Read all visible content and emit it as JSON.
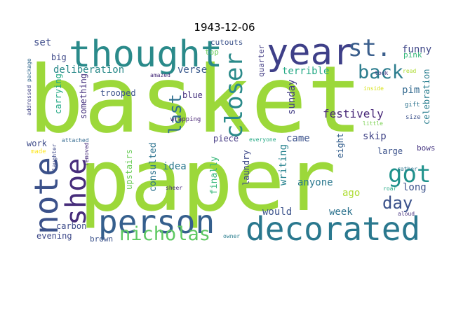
{
  "title": "1943-12-06",
  "words": [
    {
      "text": "basket",
      "color": "#9cd83a"
    },
    {
      "text": "paper",
      "color": "#9cd83a"
    },
    {
      "text": "thought",
      "color": "#2a8a8a"
    },
    {
      "text": "year",
      "color": "#3e3f88"
    },
    {
      "text": "st.",
      "color": "#3a5e8c"
    },
    {
      "text": "note",
      "color": "#3b518a"
    },
    {
      "text": "shoe",
      "color": "#472d7b"
    },
    {
      "text": "person",
      "color": "#355f8d"
    },
    {
      "text": "decorated",
      "color": "#2a788e"
    },
    {
      "text": "nicholas",
      "color": "#5ec962"
    },
    {
      "text": "got",
      "color": "#20928c"
    },
    {
      "text": "day",
      "color": "#3b528b"
    },
    {
      "text": "closer",
      "color": "#2a8a8a"
    },
    {
      "text": "back",
      "color": "#2c7d8e"
    },
    {
      "text": "last",
      "color": "#2e6f8e"
    },
    {
      "text": "festively",
      "color": "#482878"
    },
    {
      "text": "set",
      "color": "#3e4c8a"
    },
    {
      "text": "funny",
      "color": "#3f4788"
    },
    {
      "text": "big",
      "color": "#3e4989"
    },
    {
      "text": "deliberation",
      "color": "#2a8a8a"
    },
    {
      "text": "verse",
      "color": "#38588c"
    },
    {
      "text": "terrible",
      "color": "#22a884"
    },
    {
      "text": "something",
      "color": "#46327e"
    },
    {
      "text": "trooped",
      "color": "#3b528b"
    },
    {
      "text": "blue",
      "color": "#46327e"
    },
    {
      "text": "sunday",
      "color": "#433e85"
    },
    {
      "text": "pim",
      "color": "#31688e"
    },
    {
      "text": "celebration",
      "color": "#287d8e"
    },
    {
      "text": "pink",
      "color": "#35b779"
    },
    {
      "text": "cutouts",
      "color": "#3b528b"
    },
    {
      "text": "top",
      "color": "#6ccd5a"
    },
    {
      "text": "quarter",
      "color": "#433e85"
    },
    {
      "text": "carrying",
      "color": "#22a884"
    },
    {
      "text": "wrapping",
      "color": "#482475"
    },
    {
      "text": "amazed",
      "color": "#472c7a"
    },
    {
      "text": "took",
      "color": "#443983"
    },
    {
      "text": "read",
      "color": "#addc30"
    },
    {
      "text": "inside",
      "color": "#d8e219"
    },
    {
      "text": "gift",
      "color": "#2c738e"
    },
    {
      "text": "size",
      "color": "#3b518b"
    },
    {
      "text": "little",
      "color": "#7ad151"
    },
    {
      "text": "addressed",
      "color": "#414487"
    },
    {
      "text": "package",
      "color": "#31688e"
    },
    {
      "text": "skip",
      "color": "#414487"
    },
    {
      "text": "large",
      "color": "#3b528b"
    },
    {
      "text": "came",
      "color": "#3b528b"
    },
    {
      "text": "piece",
      "color": "#443983"
    },
    {
      "text": "everyone",
      "color": "#22a884"
    },
    {
      "text": "work",
      "color": "#3e4c8a"
    },
    {
      "text": "attached",
      "color": "#31688e"
    },
    {
      "text": "made",
      "color": "#fde725"
    },
    {
      "text": "laughter",
      "color": "#3e4989"
    },
    {
      "text": "removed",
      "color": "#472d7b"
    },
    {
      "text": "consulted",
      "color": "#2c728e"
    },
    {
      "text": "idea",
      "color": "#2a788e"
    },
    {
      "text": "finally",
      "color": "#35b779"
    },
    {
      "text": "laundry",
      "color": "#3e4989"
    },
    {
      "text": "writing",
      "color": "#26828e"
    },
    {
      "text": "eight",
      "color": "#355f8d"
    },
    {
      "text": "bows",
      "color": "#453581"
    },
    {
      "text": "anyone",
      "color": "#2a788e"
    },
    {
      "text": "ago",
      "color": "#addc30"
    },
    {
      "text": "long",
      "color": "#3b528b"
    },
    {
      "text": "rather",
      "color": "#2c728e"
    },
    {
      "text": "roar",
      "color": "#22a884"
    },
    {
      "text": "aloud",
      "color": "#46327e"
    },
    {
      "text": "upstairs",
      "color": "#6ccd5a"
    },
    {
      "text": "sheer",
      "color": "#472d7b"
    },
    {
      "text": "would",
      "color": "#3b528b"
    },
    {
      "text": "week",
      "color": "#2c728e"
    },
    {
      "text": "carbon",
      "color": "#3e4c8a"
    },
    {
      "text": "evening",
      "color": "#3e4989"
    },
    {
      "text": "brown",
      "color": "#3b528b"
    },
    {
      "text": "owner",
      "color": "#287d8e"
    }
  ]
}
